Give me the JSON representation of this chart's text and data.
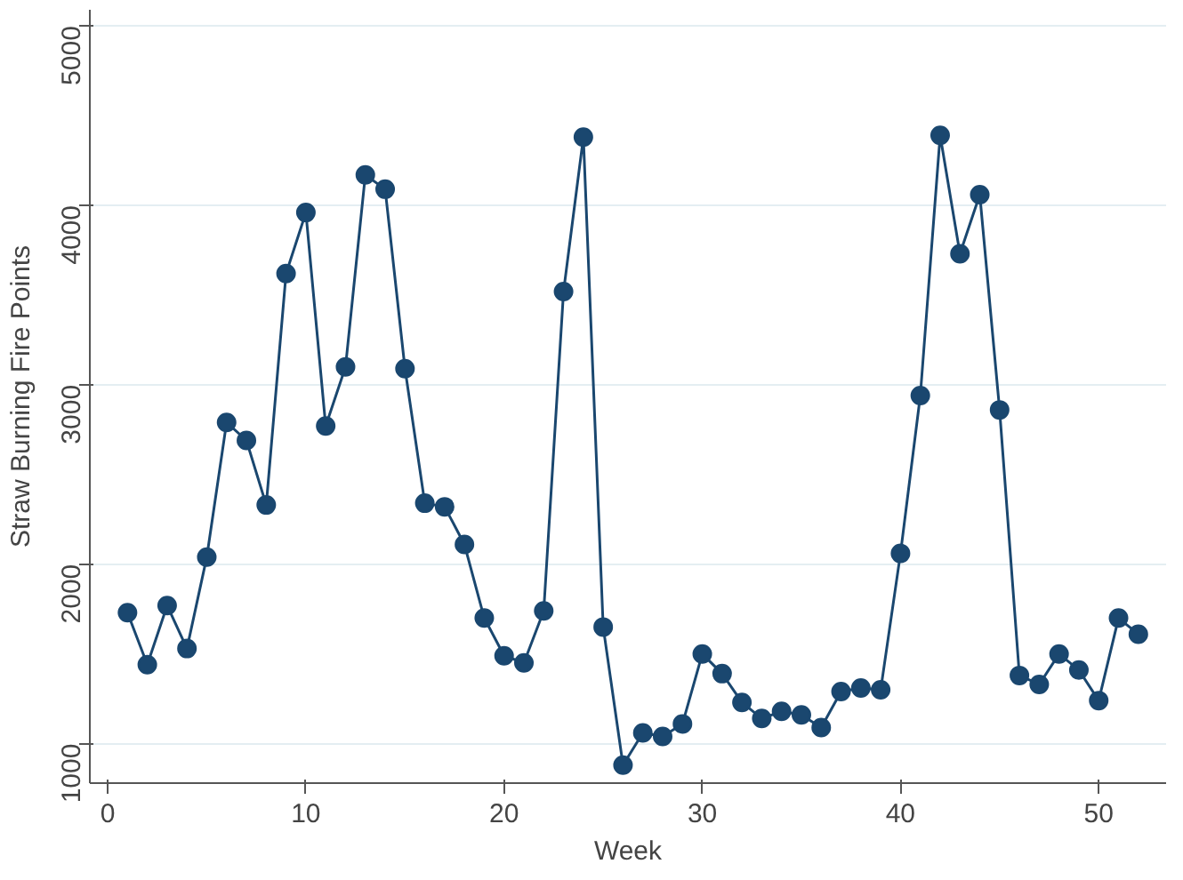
{
  "chart_data": {
    "type": "line",
    "xlabel": "Week",
    "ylabel": "Straw Burning Fire Points",
    "x": [
      1,
      2,
      3,
      4,
      5,
      6,
      7,
      8,
      9,
      10,
      11,
      12,
      13,
      14,
      15,
      16,
      17,
      18,
      19,
      20,
      21,
      22,
      23,
      24,
      25,
      26,
      27,
      28,
      29,
      30,
      31,
      32,
      33,
      34,
      35,
      36,
      37,
      38,
      39,
      40,
      41,
      42,
      43,
      44,
      45,
      46,
      47,
      48,
      49,
      50,
      51,
      52
    ],
    "series": [
      {
        "color": "#1a476f",
        "values": [
          1730,
          1440,
          1770,
          1530,
          2040,
          2790,
          2690,
          2330,
          3620,
          3960,
          2770,
          3100,
          4170,
          4090,
          3090,
          2340,
          2320,
          2110,
          1700,
          1490,
          1450,
          1740,
          3520,
          4380,
          1650,
          880,
          1060,
          1040,
          1110,
          1500,
          1390,
          1230,
          1140,
          1180,
          1160,
          1090,
          1290,
          1310,
          1300,
          2060,
          2940,
          4390,
          3730,
          4060,
          2860,
          1380,
          1330,
          1500,
          1410,
          1240,
          1700,
          1610
        ]
      }
    ],
    "xlim": [
      -0.9,
      53.4
    ],
    "ylim": [
      780,
      5090
    ],
    "xticks": [
      0,
      10,
      20,
      30,
      40,
      50
    ],
    "yticks": [
      1000,
      2000,
      3000,
      4000,
      5000
    ],
    "grid": "y",
    "marker": "circle",
    "line_style": "solid"
  }
}
